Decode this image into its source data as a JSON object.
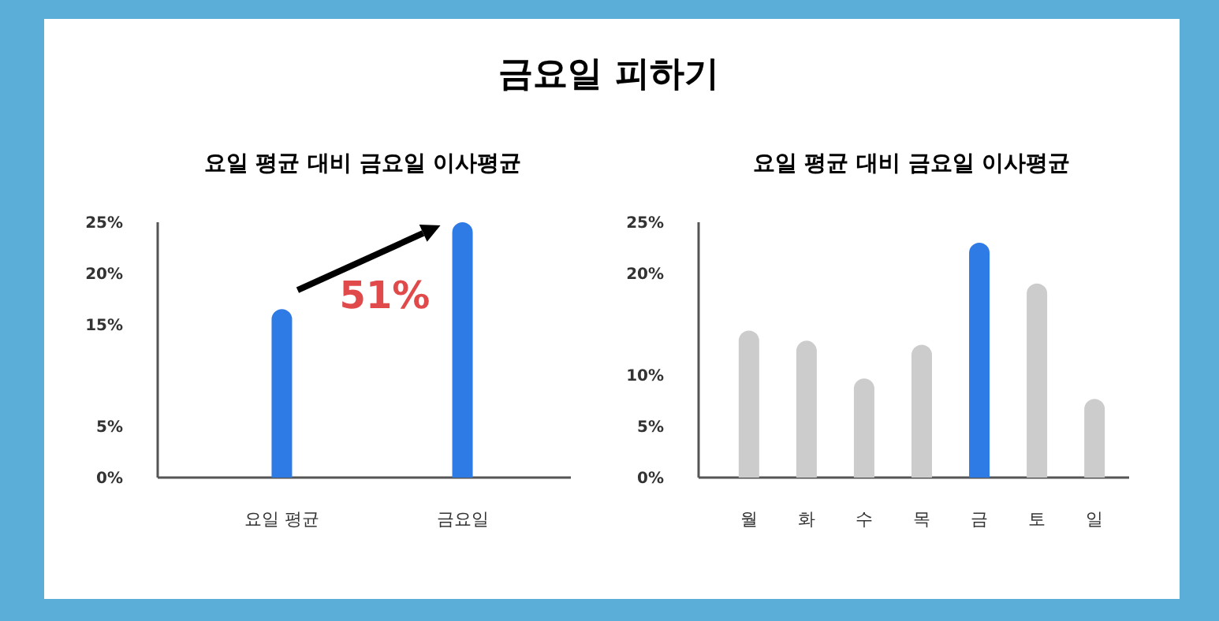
{
  "chart_data": [
    {
      "type": "bar",
      "title": "금요일 피하기",
      "subtitle": "요일 평균 대비 금요일 이사평균",
      "categories": [
        "요일 평균",
        "금요일"
      ],
      "values": [
        16.5,
        25
      ],
      "colors": [
        "#2f7be6",
        "#2f7be6"
      ],
      "ylim": [
        0,
        25
      ],
      "yticks": [
        {
          "value": 0,
          "label": "0%"
        },
        {
          "value": 5,
          "label": "5%"
        },
        {
          "value": 15,
          "label": "15%"
        },
        {
          "value": 20,
          "label": "20%"
        },
        {
          "value": 25,
          "label": "25%"
        }
      ],
      "annotations": [
        "51%"
      ],
      "grid": false
    },
    {
      "type": "bar",
      "title": "요일 평균 대비 금요일 이사평균",
      "categories": [
        "월",
        "화",
        "수",
        "목",
        "금",
        "토",
        "일"
      ],
      "values": [
        14.4,
        13.4,
        9.7,
        13,
        23,
        19,
        7.7
      ],
      "colors": [
        "#cccccc",
        "#cccccc",
        "#cccccc",
        "#cccccc",
        "#2f7be6",
        "#cccccc",
        "#cccccc"
      ],
      "ylim": [
        0,
        25
      ],
      "yticks": [
        {
          "value": 0,
          "label": "0%"
        },
        {
          "value": 5,
          "label": "5%"
        },
        {
          "value": 10,
          "label": "10%"
        },
        {
          "value": 20,
          "label": "20%"
        },
        {
          "value": 25,
          "label": "25%"
        }
      ],
      "grid": false
    }
  ]
}
